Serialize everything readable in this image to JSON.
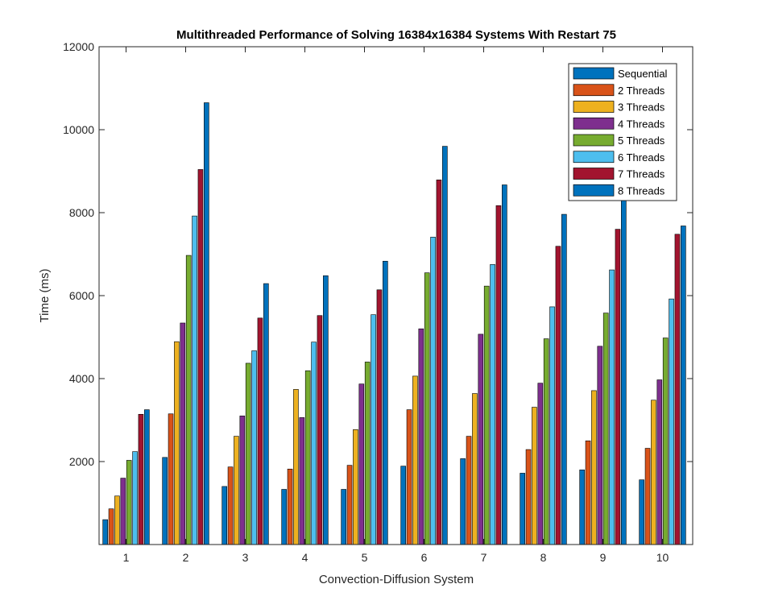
{
  "chart_data": {
    "type": "bar",
    "title": "Multithreaded Performance of Solving 16384x16384 Systems With Restart 75",
    "xlabel": "Convection-Diffusion System",
    "ylabel": "Time (ms)",
    "categories": [
      "1",
      "2",
      "3",
      "4",
      "5",
      "6",
      "7",
      "8",
      "9",
      "10"
    ],
    "ylim": [
      0,
      12000
    ],
    "yticks": [
      2000,
      4000,
      6000,
      8000,
      10000,
      12000
    ],
    "legend_position": "top-right",
    "grid": false,
    "series": [
      {
        "name": "Sequential",
        "color": "#0072BD",
        "values": [
          600,
          2100,
          1400,
          1330,
          1330,
          1890,
          2070,
          1720,
          1800,
          1560
        ]
      },
      {
        "name": "2 Threads",
        "color": "#D95319",
        "values": [
          860,
          3150,
          1870,
          1820,
          1910,
          3250,
          2610,
          2290,
          2500,
          2320
        ]
      },
      {
        "name": "3 Threads",
        "color": "#EDB120",
        "values": [
          1170,
          4890,
          2610,
          3740,
          2770,
          4060,
          3640,
          3310,
          3710,
          3480
        ]
      },
      {
        "name": "4 Threads",
        "color": "#7E2F8E",
        "values": [
          1600,
          5340,
          3100,
          3060,
          3870,
          5200,
          5070,
          3890,
          4780,
          3970
        ]
      },
      {
        "name": "5 Threads",
        "color": "#77AC30",
        "values": [
          2030,
          6970,
          4370,
          4190,
          4400,
          6550,
          6230,
          4960,
          5580,
          4980
        ]
      },
      {
        "name": "6 Threads",
        "color": "#4DBEEE",
        "values": [
          2240,
          7920,
          4670,
          4880,
          5540,
          7410,
          6750,
          5730,
          6620,
          5920
        ]
      },
      {
        "name": "7 Threads",
        "color": "#A2142F",
        "values": [
          3140,
          9040,
          5460,
          5520,
          6140,
          8790,
          8170,
          7190,
          7600,
          7480
        ]
      },
      {
        "name": "8 Threads",
        "color": "#0072BD",
        "values": [
          3250,
          10650,
          6290,
          6480,
          6830,
          9600,
          8670,
          7960,
          8660,
          7680
        ]
      }
    ]
  }
}
